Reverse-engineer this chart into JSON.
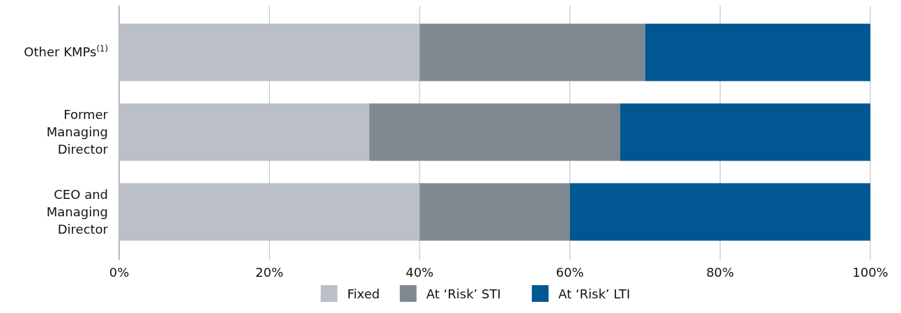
{
  "chart_data": {
    "type": "bar",
    "orientation": "horizontal",
    "stacked": true,
    "categories": [
      "Other KMPs$^{(1)}$",
      "Former Managing Director",
      "CEO and Managing Director"
    ],
    "series": [
      {
        "name": "Fixed",
        "color": "#bbbfc7",
        "values": [
          40,
          33.3,
          40
        ]
      },
      {
        "name": "At ‘Risk’ STI",
        "color": "#808991",
        "values": [
          30,
          33.4,
          20
        ]
      },
      {
        "name": "At ‘Risk’ LTI",
        "color": "#005792",
        "values": [
          30,
          33.3,
          40
        ]
      }
    ],
    "xlim": [
      0,
      100
    ],
    "xticks": [
      {
        "value": 0,
        "label": "0%"
      },
      {
        "value": 20,
        "label": "20%"
      },
      {
        "value": 40,
        "label": "40%"
      },
      {
        "value": 60,
        "label": "60%"
      },
      {
        "value": 80,
        "label": "80%"
      },
      {
        "value": 100,
        "label": "100%"
      }
    ],
    "grid": "x",
    "legend": "bottom"
  }
}
